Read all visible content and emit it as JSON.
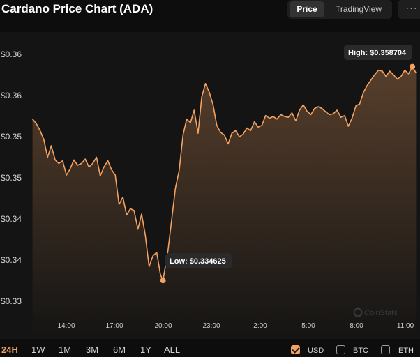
{
  "header": {
    "title": "Cardano Price Chart (ADA)",
    "view_tabs": [
      {
        "label": "Price",
        "active": true
      },
      {
        "label": "TradingView",
        "active": false
      }
    ],
    "more_label": "···"
  },
  "watermark": "CoinStats",
  "range_tabs": [
    {
      "label": "24H",
      "active": true
    },
    {
      "label": "1W",
      "active": false
    },
    {
      "label": "1M",
      "active": false
    },
    {
      "label": "3M",
      "active": false
    },
    {
      "label": "6M",
      "active": false
    },
    {
      "label": "1Y",
      "active": false
    },
    {
      "label": "ALL",
      "active": false
    }
  ],
  "currencies": [
    {
      "label": "USD",
      "checked": true
    },
    {
      "label": "BTC",
      "checked": false
    },
    {
      "label": "ETH",
      "checked": false
    }
  ],
  "colors": {
    "line": "#f4a261",
    "background": "#141414",
    "page": "#0d0d0d"
  },
  "chart_data": {
    "type": "area",
    "title": "",
    "xlabel": "",
    "ylabel": "",
    "grid": false,
    "legend": "none",
    "y_tick_labels": [
      "$0.36",
      "$0.36",
      "$0.35",
      "$0.35",
      "$0.34",
      "$0.34",
      "$0.33"
    ],
    "x_tick_labels": [
      "14:00",
      "17:00",
      "20:00",
      "23:00",
      "2:00",
      "5:00",
      "8:00",
      "11:00"
    ],
    "ylim": [
      0.3315,
      0.3615
    ],
    "xlim": [
      11.8,
      35.8
    ],
    "high": {
      "label": "High: $0.358704",
      "x": 35.5,
      "y": 0.358704
    },
    "low": {
      "label": "Low: $0.334625",
      "x": 20.07,
      "y": 0.334625
    },
    "x_values": [
      12.0,
      12.23,
      12.47,
      12.7,
      12.93,
      13.16,
      13.4,
      13.63,
      13.86,
      14.1,
      14.33,
      14.56,
      14.79,
      15.03,
      15.26,
      15.49,
      15.72,
      15.96,
      16.19,
      16.42,
      16.66,
      16.89,
      17.12,
      17.35,
      17.59,
      17.82,
      18.05,
      18.28,
      18.52,
      18.75,
      18.98,
      19.21,
      19.45,
      19.68,
      19.91,
      20.07,
      20.38,
      20.61,
      20.84,
      21.07,
      21.31,
      21.54,
      21.77,
      22.0,
      22.24,
      22.47,
      22.7,
      22.94,
      23.17,
      23.4,
      23.63,
      23.87,
      24.1,
      24.33,
      24.56,
      24.8,
      25.03,
      25.26,
      25.49,
      25.73,
      25.96,
      26.19,
      26.42,
      26.66,
      26.89,
      27.12,
      27.36,
      27.59,
      27.82,
      28.05,
      28.29,
      28.52,
      28.75,
      28.98,
      29.22,
      29.45,
      29.68,
      29.91,
      30.15,
      30.38,
      30.61,
      30.84,
      31.08,
      31.31,
      31.54,
      31.77,
      32.01,
      32.24,
      32.47,
      32.71,
      32.94,
      33.17,
      33.4,
      33.64,
      33.87,
      34.1,
      34.33,
      34.57,
      34.8,
      35.03,
      35.26,
      35.5,
      35.73
    ],
    "y_values": [
      0.3528,
      0.3523,
      0.3515,
      0.3505,
      0.3485,
      0.3498,
      0.3482,
      0.3478,
      0.3481,
      0.3465,
      0.3472,
      0.3482,
      0.3476,
      0.3478,
      0.3483,
      0.3474,
      0.3478,
      0.3485,
      0.3464,
      0.3474,
      0.3481,
      0.3471,
      0.3465,
      0.3432,
      0.344,
      0.342,
      0.3427,
      0.3425,
      0.3404,
      0.3421,
      0.3397,
      0.3362,
      0.3374,
      0.3378,
      0.3353,
      0.3346,
      0.338,
      0.3415,
      0.345,
      0.347,
      0.351,
      0.3528,
      0.3524,
      0.3538,
      0.3512,
      0.3553,
      0.3568,
      0.3558,
      0.3544,
      0.3521,
      0.3513,
      0.351,
      0.35,
      0.3512,
      0.3515,
      0.3508,
      0.3511,
      0.3518,
      0.3515,
      0.3525,
      0.3519,
      0.3521,
      0.3532,
      0.3529,
      0.3531,
      0.3528,
      0.3533,
      0.3531,
      0.353,
      0.3535,
      0.3526,
      0.3538,
      0.3544,
      0.3537,
      0.3533,
      0.354,
      0.3542,
      0.354,
      0.3536,
      0.3533,
      0.3534,
      0.3538,
      0.353,
      0.3532,
      0.352,
      0.3529,
      0.3543,
      0.3545,
      0.3558,
      0.3566,
      0.3572,
      0.3578,
      0.3583,
      0.3582,
      0.3576,
      0.3582,
      0.3578,
      0.3573,
      0.3576,
      0.3583,
      0.3579,
      0.3587,
      0.358
    ]
  }
}
